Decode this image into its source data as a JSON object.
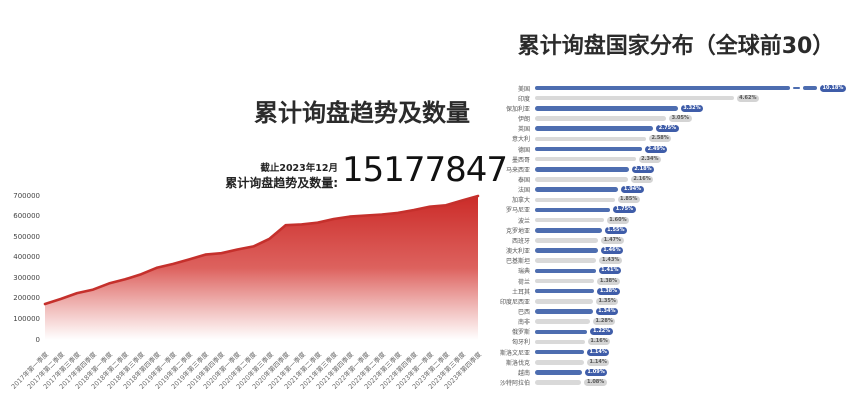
{
  "left_chart": {
    "title": "累计询盘趋势及数量",
    "asof_label": "截止2023年12月",
    "total_label": "累计询盘趋势及数量:",
    "total_value": "15177847"
  },
  "right_chart": {
    "title": "累计询盘国家分布（全球前30）"
  },
  "colors": {
    "area_line": "#c5302c",
    "area_gradient_top": "#cb2b28",
    "area_gradient_mid": "#da5450",
    "area_gradient_bottom": "#ffffff",
    "bar_blue": "#4d6db0",
    "badge_blue": "#3f5da9",
    "badge_blue_text": "#ffffff",
    "bar_gray": "#d9d9d9",
    "badge_gray": "#d4d4d4",
    "badge_gray_text": "#555555",
    "title_text": "#2b2b2b"
  },
  "chart_data": [
    {
      "type": "area",
      "title": "累计询盘趋势及数量",
      "x": [
        "2017年第一季度",
        "2017年第二季度",
        "2017年第三季度",
        "2017年第四季度",
        "2018年第一季度",
        "2018年第二季度",
        "2018年第三季度",
        "2018年第四季度",
        "2019年第一季度",
        "2019年第二季度",
        "2019年第三季度",
        "2019年第四季度",
        "2020年第一季度",
        "2020年第二季度",
        "2020年第三季度",
        "2020年第四季度",
        "2021年第一季度",
        "2021年第二季度",
        "2021年第三季度",
        "2021年第四季度",
        "2022年第一季度",
        "2022年第二季度",
        "2022年第三季度",
        "2022年第四季度",
        "2023年第一季度",
        "2023年第二季度",
        "2023年第三季度",
        "2023年第四季度"
      ],
      "values": [
        175000,
        200000,
        228000,
        245000,
        275000,
        295000,
        320000,
        352000,
        370000,
        392000,
        415000,
        422000,
        440000,
        455000,
        492000,
        558000,
        562000,
        570000,
        588000,
        600000,
        605000,
        610000,
        618000,
        632000,
        648000,
        655000,
        678000,
        700000
      ],
      "xlabel": "",
      "ylabel": "",
      "ylim": [
        0,
        700000
      ],
      "yticks": [
        0,
        100000,
        200000,
        300000,
        400000,
        500000,
        600000,
        700000
      ],
      "grid": false,
      "legend": false
    },
    {
      "type": "bar",
      "orientation": "horizontal",
      "title": "累计询盘国家分布（全球前30）",
      "categories": [
        "美国",
        "印度",
        "保加利亚",
        "伊朗",
        "英国",
        "意大利",
        "德国",
        "墨西哥",
        "马来西亚",
        "泰国",
        "法国",
        "加拿大",
        "罗马尼亚",
        "波兰",
        "克罗地亚",
        "西班牙",
        "澳大利亚",
        "巴基斯坦",
        "瑞典",
        "荷兰",
        "土耳其",
        "印度尼西亚",
        "巴西",
        "南非",
        "俄罗斯",
        "匈牙利",
        "斯洛文尼亚",
        "斯洛伐克",
        "越南",
        "沙特阿拉伯"
      ],
      "values": [
        10.18,
        4.62,
        3.32,
        3.05,
        2.75,
        2.58,
        2.49,
        2.34,
        2.18,
        2.16,
        1.94,
        1.85,
        1.75,
        1.6,
        1.55,
        1.47,
        1.46,
        1.43,
        1.41,
        1.38,
        1.38,
        1.35,
        1.34,
        1.28,
        1.22,
        1.16,
        1.14,
        1.14,
        1.09,
        1.08
      ],
      "labels": [
        "10.18%",
        "4.62%",
        "3.32%",
        "3.05%",
        "2.75%",
        "2.58%",
        "2.49%",
        "2.34%",
        "2.18%",
        "2.16%",
        "1.94%",
        "1.85%",
        "1.75%",
        "1.60%",
        "1.55%",
        "1.47%",
        "1.46%",
        "1.43%",
        "1.41%",
        "1.38%",
        "1.38%",
        "1.35%",
        "1.34%",
        "1.28%",
        "1.22%",
        "1.16%",
        "1.14%",
        "1.14%",
        "1.09%",
        "1.08%"
      ],
      "unit": "%",
      "alternating_colors": [
        "blue",
        "gray"
      ],
      "first_bar_axis_break": true,
      "legend": false,
      "grid": false
    }
  ]
}
